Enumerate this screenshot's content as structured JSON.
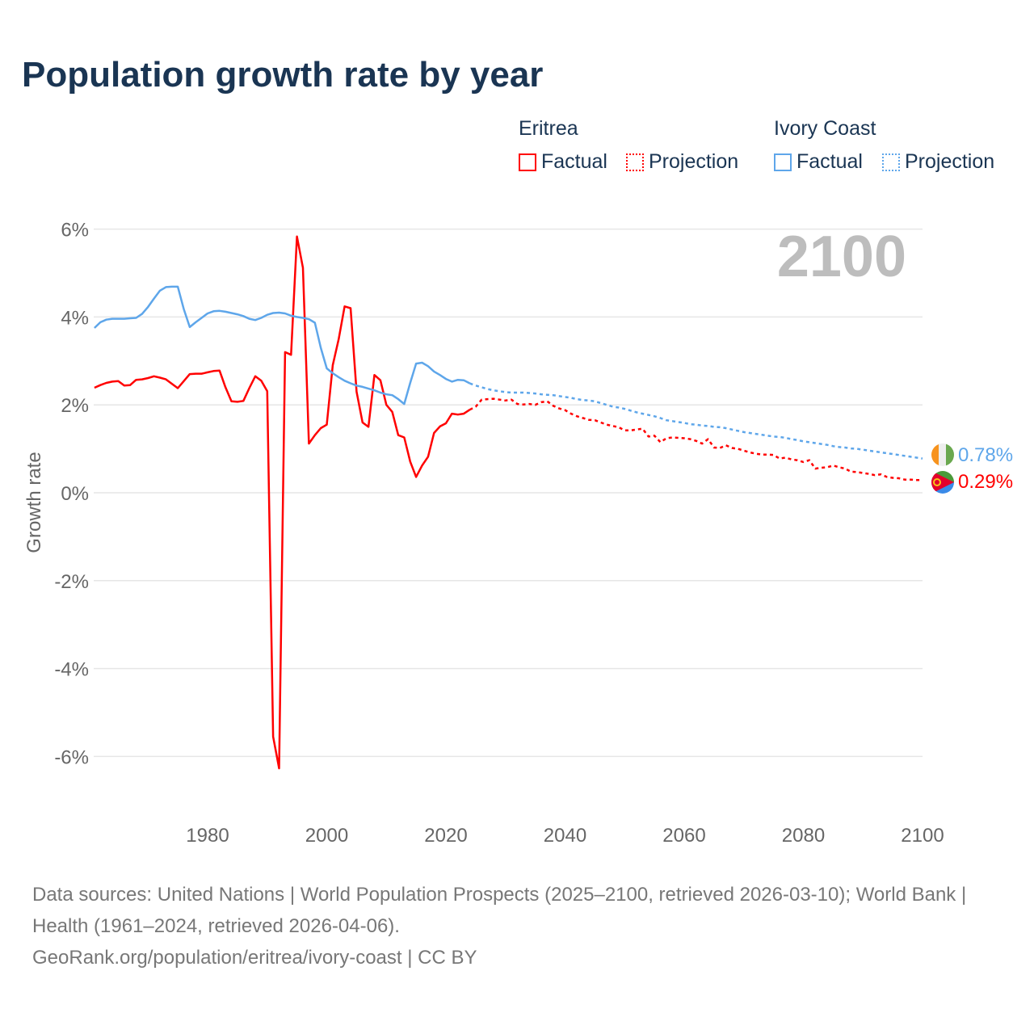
{
  "title": "Population growth rate by year",
  "legend": {
    "groups": [
      {
        "name": "Eritrea",
        "color": "#ff0000",
        "factual": "Factual",
        "projection": "Projection"
      },
      {
        "name": "Ivory Coast",
        "color": "#5ea6ea",
        "factual": "Factual",
        "projection": "Projection"
      }
    ]
  },
  "year_watermark": "2100",
  "end_labels": {
    "ivory_coast": "0.78%",
    "eritrea": "0.29%"
  },
  "footer": {
    "sources": "Data sources: United Nations | World Population Prospects (2025–2100, retrieved 2026-03-10); World Bank | Health (1961–2024, retrieved 2026-04-06).",
    "credit": "GeoRank.org/population/eritrea/ivory-coast | CC BY"
  },
  "chart_data": {
    "type": "line",
    "title": "Population growth rate by year",
    "xlabel": "",
    "ylabel": "Growth rate",
    "xlim": [
      1961,
      2100
    ],
    "ylim": [
      -7,
      6.5
    ],
    "x_ticks": [
      1980,
      2000,
      2020,
      2040,
      2060,
      2080,
      2100
    ],
    "x_tick_labels": [
      "1980",
      "2000",
      "2020",
      "2040",
      "2060",
      "2080",
      "2100"
    ],
    "y_ticks": [
      6,
      4,
      2,
      0,
      -2,
      -4,
      -6
    ],
    "y_tick_labels": [
      "6%",
      "4%",
      "2%",
      "0%",
      "-2%",
      "-4%",
      "-6%"
    ],
    "grid": true,
    "legend_position": "top-right",
    "series": [
      {
        "name": "Eritrea Factual",
        "color": "#ff0000",
        "style": "solid",
        "start_year": 1961,
        "values": [
          2.39,
          2.45,
          2.5,
          2.53,
          2.54,
          2.44,
          2.45,
          2.57,
          2.58,
          2.61,
          2.65,
          2.62,
          2.58,
          2.48,
          2.38,
          2.54,
          2.7,
          2.71,
          2.71,
          2.74,
          2.77,
          2.78,
          2.4,
          2.08,
          2.07,
          2.09,
          2.38,
          2.65,
          2.55,
          2.31,
          -5.55,
          -6.27,
          3.2,
          3.14,
          5.83,
          5.12,
          1.12,
          1.31,
          1.47,
          1.55,
          2.9,
          3.5,
          4.24,
          4.2,
          2.3,
          1.6,
          1.5,
          2.68,
          2.56,
          2.0,
          1.84,
          1.31,
          1.26,
          0.71,
          0.36,
          0.62,
          0.82,
          1.36,
          1.51,
          1.58,
          1.8,
          1.78,
          1.8,
          1.89
        ]
      },
      {
        "name": "Eritrea Projection",
        "color": "#ff0000",
        "style": "dotted",
        "start_year": 2025,
        "values": [
          1.96,
          2.12,
          2.13,
          2.14,
          2.12,
          2.1,
          2.12,
          2.02,
          2.01,
          2.02,
          2.0,
          2.06,
          2.08,
          1.98,
          1.92,
          1.88,
          1.8,
          1.74,
          1.7,
          1.66,
          1.65,
          1.6,
          1.55,
          1.52,
          1.49,
          1.42,
          1.42,
          1.44,
          1.46,
          1.28,
          1.3,
          1.15,
          1.24,
          1.26,
          1.25,
          1.24,
          1.22,
          1.18,
          1.12,
          1.22,
          1.03,
          1.02,
          1.08,
          1.02,
          1.0,
          0.96,
          0.92,
          0.89,
          0.87,
          0.87,
          0.86,
          0.78,
          0.8,
          0.76,
          0.74,
          0.7,
          0.74,
          0.55,
          0.57,
          0.58,
          0.62,
          0.58,
          0.55,
          0.48,
          0.47,
          0.45,
          0.43,
          0.4,
          0.42,
          0.36,
          0.34,
          0.33,
          0.3,
          0.3,
          0.29,
          0.29
        ]
      },
      {
        "name": "Ivory Coast Factual",
        "color": "#5ea6ea",
        "style": "solid",
        "start_year": 1961,
        "values": [
          3.75,
          3.88,
          3.94,
          3.96,
          3.96,
          3.96,
          3.97,
          3.98,
          4.07,
          4.23,
          4.42,
          4.6,
          4.68,
          4.69,
          4.69,
          4.18,
          3.77,
          3.88,
          3.98,
          4.08,
          4.13,
          4.14,
          4.12,
          4.09,
          4.06,
          4.02,
          3.96,
          3.93,
          3.98,
          4.05,
          4.09,
          4.1,
          4.08,
          4.03,
          4.0,
          3.98,
          3.95,
          3.87,
          3.3,
          2.83,
          2.72,
          2.63,
          2.55,
          2.49,
          2.44,
          2.41,
          2.37,
          2.33,
          2.28,
          2.24,
          2.22,
          2.13,
          2.02,
          2.5,
          2.94,
          2.96,
          2.88,
          2.76,
          2.68,
          2.59,
          2.53,
          2.57,
          2.56,
          2.49
        ]
      },
      {
        "name": "Ivory Coast Projection",
        "color": "#5ea6ea",
        "style": "dotted",
        "start_year": 2025,
        "values": [
          2.44,
          2.4,
          2.36,
          2.33,
          2.31,
          2.29,
          2.28,
          2.28,
          2.28,
          2.27,
          2.26,
          2.24,
          2.23,
          2.22,
          2.2,
          2.18,
          2.16,
          2.13,
          2.11,
          2.1,
          2.08,
          2.04,
          2.0,
          1.96,
          1.94,
          1.91,
          1.87,
          1.83,
          1.8,
          1.77,
          1.74,
          1.7,
          1.65,
          1.63,
          1.61,
          1.59,
          1.56,
          1.55,
          1.53,
          1.52,
          1.5,
          1.49,
          1.47,
          1.44,
          1.41,
          1.38,
          1.36,
          1.34,
          1.32,
          1.3,
          1.28,
          1.27,
          1.25,
          1.22,
          1.2,
          1.17,
          1.15,
          1.13,
          1.11,
          1.09,
          1.06,
          1.04,
          1.03,
          1.01,
          1.0,
          0.98,
          0.96,
          0.94,
          0.92,
          0.9,
          0.88,
          0.86,
          0.84,
          0.82,
          0.8,
          0.78
        ]
      }
    ]
  }
}
